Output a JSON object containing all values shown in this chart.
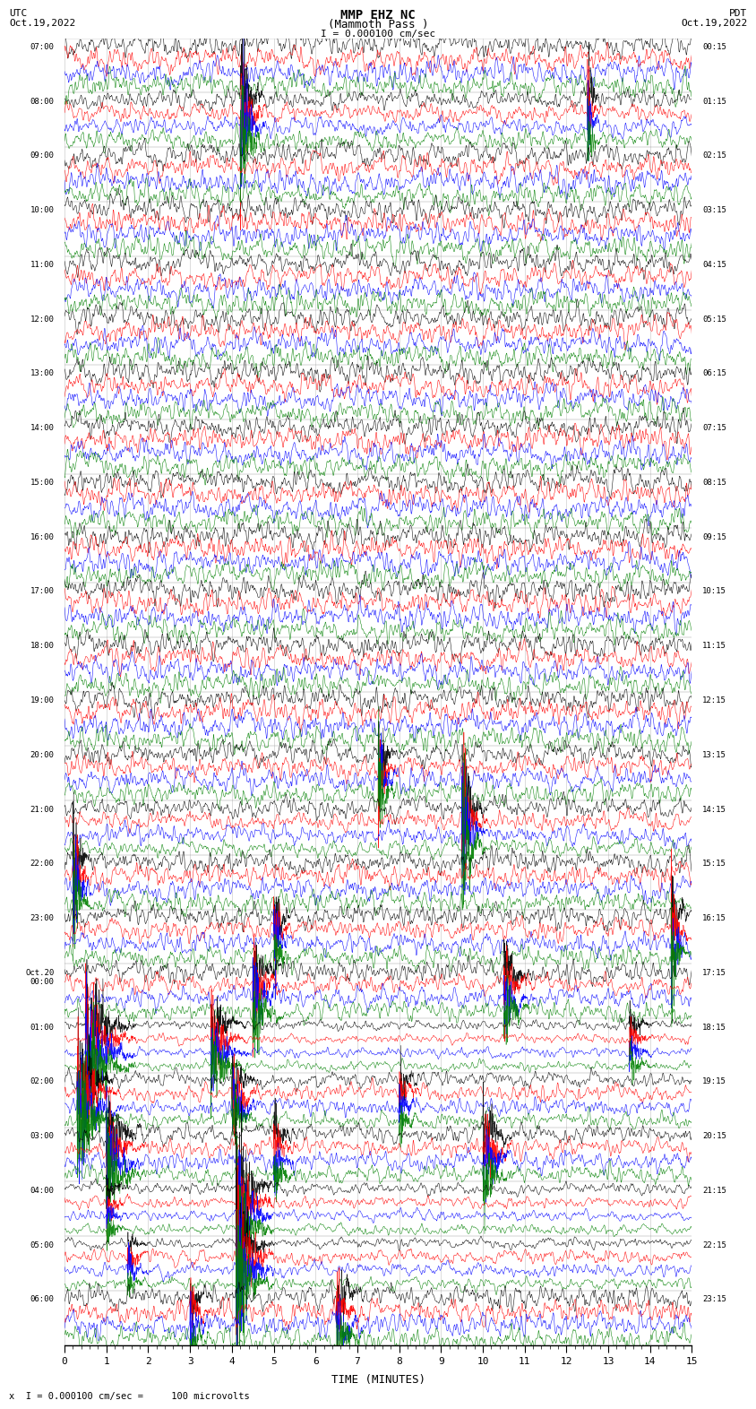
{
  "title_line1": "MMP EHZ NC",
  "title_line2": "(Mammoth Pass )",
  "title_scale": "I = 0.000100 cm/sec",
  "left_header1": "UTC",
  "left_header2": "Oct.19,2022",
  "right_header1": "PDT",
  "right_header2": "Oct.19,2022",
  "xlabel": "TIME (MINUTES)",
  "bottom_note": "x  I = 0.000100 cm/sec =     100 microvolts",
  "utc_times": [
    "07:00",
    "08:00",
    "09:00",
    "10:00",
    "11:00",
    "12:00",
    "13:00",
    "14:00",
    "15:00",
    "16:00",
    "17:00",
    "18:00",
    "19:00",
    "20:00",
    "21:00",
    "22:00",
    "23:00",
    "Oct.20\n00:00",
    "01:00",
    "02:00",
    "03:00",
    "04:00",
    "05:00",
    "06:00"
  ],
  "pdt_times": [
    "00:15",
    "01:15",
    "02:15",
    "03:15",
    "04:15",
    "05:15",
    "06:15",
    "07:15",
    "08:15",
    "09:15",
    "10:15",
    "11:15",
    "12:15",
    "13:15",
    "14:15",
    "15:15",
    "16:15",
    "17:15",
    "18:15",
    "19:15",
    "20:15",
    "21:15",
    "22:15",
    "23:15"
  ],
  "n_rows": 24,
  "traces_per_row": 4,
  "colors": [
    "black",
    "red",
    "blue",
    "green"
  ],
  "xmin": 0,
  "xmax": 15,
  "bg_color": "white",
  "seed": 42
}
